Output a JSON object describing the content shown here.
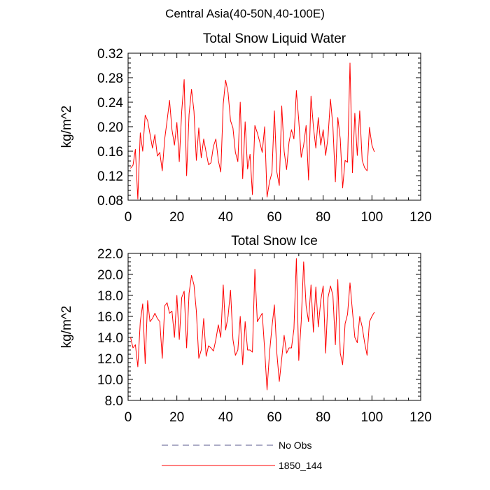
{
  "suptitle": "Central Asia(40-50N,40-100E)",
  "chart_data": [
    {
      "type": "line",
      "title": "Total Snow Liquid Water",
      "xlabel": "",
      "ylabel": "kg/m^2",
      "xlim": [
        0,
        120
      ],
      "ylim": [
        0.08,
        0.32
      ],
      "xticks": [
        0,
        20,
        40,
        60,
        80,
        100,
        120
      ],
      "yticks": [
        0.08,
        0.12,
        0.16,
        0.2,
        0.24,
        0.28,
        0.32
      ],
      "ytick_labels": [
        "0.08",
        "0.12",
        "0.16",
        "0.20",
        "0.24",
        "0.28",
        "0.32"
      ],
      "grid": false,
      "series": [
        {
          "name": "1850_144",
          "color": "#ff0000",
          "x": [
            1,
            2,
            3,
            4,
            5,
            6,
            7,
            8,
            9,
            10,
            11,
            12,
            13,
            14,
            15,
            16,
            17,
            18,
            19,
            20,
            21,
            22,
            23,
            24,
            25,
            26,
            27,
            28,
            29,
            30,
            31,
            32,
            33,
            34,
            35,
            36,
            37,
            38,
            39,
            40,
            41,
            42,
            43,
            44,
            45,
            46,
            47,
            48,
            49,
            50,
            51,
            52,
            53,
            54,
            55,
            56,
            57,
            58,
            59,
            60,
            61,
            62,
            63,
            64,
            65,
            66,
            67,
            68,
            69,
            70,
            71,
            72,
            73,
            74,
            75,
            76,
            77,
            78,
            79,
            80,
            81,
            82,
            83,
            84,
            85,
            86,
            87,
            88,
            89,
            90,
            91,
            92,
            93,
            94,
            95,
            96,
            97,
            98,
            99,
            100,
            101
          ],
          "y": [
            0.132,
            0.137,
            0.163,
            0.082,
            0.19,
            0.16,
            0.219,
            0.21,
            0.188,
            0.165,
            0.187,
            0.152,
            0.158,
            0.128,
            0.18,
            0.21,
            0.243,
            0.195,
            0.17,
            0.207,
            0.143,
            0.225,
            0.277,
            0.12,
            0.22,
            0.261,
            0.225,
            0.145,
            0.198,
            0.149,
            0.18,
            0.158,
            0.138,
            0.141,
            0.168,
            0.18,
            0.145,
            0.126,
            0.237,
            0.276,
            0.256,
            0.21,
            0.198,
            0.158,
            0.143,
            0.24,
            0.115,
            0.208,
            0.131,
            0.155,
            0.089,
            0.202,
            0.19,
            0.175,
            0.158,
            0.2,
            0.085,
            0.11,
            0.125,
            0.226,
            0.126,
            0.104,
            0.234,
            0.16,
            0.13,
            0.175,
            0.195,
            0.18,
            0.259,
            0.21,
            0.15,
            0.17,
            0.202,
            0.113,
            0.25,
            0.2,
            0.165,
            0.215,
            0.17,
            0.195,
            0.153,
            0.183,
            0.245,
            0.2,
            0.11,
            0.215,
            0.18,
            0.1,
            0.145,
            0.142,
            0.304,
            0.125,
            0.222,
            0.153,
            0.226,
            0.145,
            0.133,
            0.128,
            0.199,
            0.17,
            0.159
          ]
        }
      ]
    },
    {
      "type": "line",
      "title": "Total Snow Ice",
      "xlabel": "",
      "ylabel": "kg/m^2",
      "xlim": [
        0,
        120
      ],
      "ylim": [
        8.0,
        22.0
      ],
      "xticks": [
        0,
        20,
        40,
        60,
        80,
        100,
        120
      ],
      "yticks": [
        8,
        10,
        12,
        14,
        16,
        18,
        20,
        22
      ],
      "ytick_labels": [
        "8.0",
        "10.0",
        "12.0",
        "14.0",
        "16.0",
        "18.0",
        "20.0",
        "22.0"
      ],
      "grid": false,
      "series": [
        {
          "name": "1850_144",
          "color": "#ff0000",
          "x": [
            1,
            2,
            3,
            4,
            5,
            6,
            7,
            8,
            9,
            10,
            11,
            12,
            13,
            14,
            15,
            16,
            17,
            18,
            19,
            20,
            21,
            22,
            23,
            24,
            25,
            26,
            27,
            28,
            29,
            30,
            31,
            32,
            33,
            34,
            35,
            36,
            37,
            38,
            39,
            40,
            41,
            42,
            43,
            44,
            45,
            46,
            47,
            48,
            49,
            50,
            51,
            52,
            53,
            54,
            55,
            56,
            57,
            58,
            59,
            60,
            61,
            62,
            63,
            64,
            65,
            66,
            67,
            68,
            69,
            70,
            71,
            72,
            73,
            74,
            75,
            76,
            77,
            78,
            79,
            80,
            81,
            82,
            83,
            84,
            85,
            86,
            87,
            88,
            89,
            90,
            91,
            92,
            93,
            94,
            95,
            96,
            97,
            98,
            99,
            100,
            101
          ],
          "y": [
            14.0,
            13.0,
            13.3,
            11.2,
            15.5,
            17.2,
            11.5,
            17.5,
            15.5,
            15.8,
            16.3,
            15.8,
            15.5,
            12.0,
            17.0,
            17.3,
            16.3,
            16.5,
            14.0,
            18.0,
            13.8,
            17.8,
            18.4,
            13.0,
            18.2,
            19.9,
            19.0,
            16.5,
            12.0,
            12.8,
            15.8,
            12.2,
            13.2,
            13.0,
            12.7,
            13.8,
            15.2,
            14.0,
            19.0,
            14.7,
            16.0,
            18.5,
            13.8,
            12.3,
            12.8,
            16.0,
            11.4,
            15.5,
            12.8,
            12.8,
            12.6,
            20.5,
            15.5,
            15.9,
            16.3,
            12.8,
            9.0,
            12.5,
            15.0,
            17.1,
            12.5,
            9.8,
            12.0,
            14.2,
            12.5,
            13.0,
            13.0,
            14.8,
            21.5,
            11.8,
            15.5,
            21.2,
            17.0,
            15.5,
            19.0,
            14.5,
            18.8,
            15.0,
            17.5,
            18.9,
            12.5,
            17.8,
            18.9,
            18.0,
            13.3,
            19.5,
            12.5,
            11.4,
            15.3,
            16.2,
            19.2,
            16.5,
            14.0,
            13.5,
            16.0,
            15.0,
            13.5,
            12.3,
            15.5,
            16.0,
            16.4
          ]
        }
      ]
    }
  ],
  "legend": {
    "items": [
      {
        "label": "No Obs",
        "color": "#5a5a8c",
        "style": "dashed"
      },
      {
        "label": "1850_144",
        "color": "#ff0000",
        "style": "solid"
      }
    ]
  }
}
